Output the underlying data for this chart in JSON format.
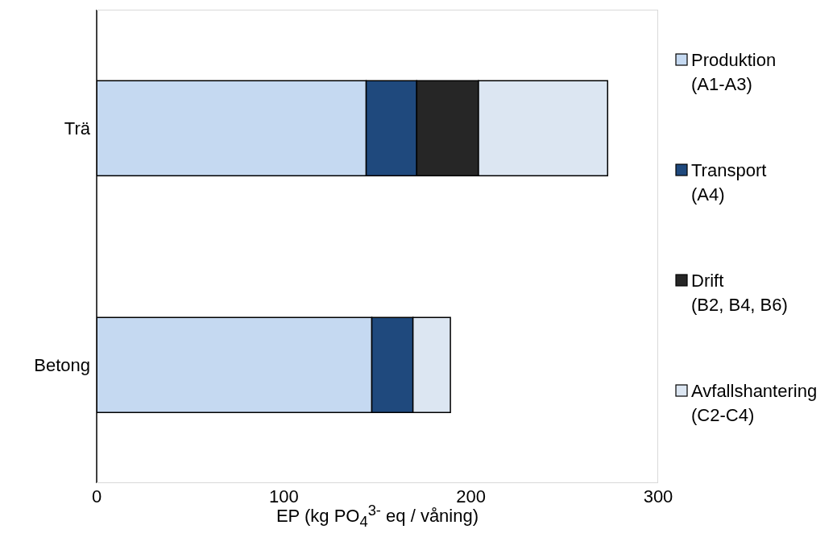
{
  "chart_data": {
    "type": "bar",
    "orientation": "horizontal",
    "stacked": true,
    "categories": [
      "Trä",
      "Betong"
    ],
    "series": [
      {
        "name": "Produktion (A1-A3)",
        "color": "#c5d9f1",
        "values": [
          144,
          147
        ]
      },
      {
        "name": "Transport (A4)",
        "color": "#1f497d",
        "values": [
          27,
          22
        ]
      },
      {
        "name": "Drift (B2, B4, B6)",
        "color": "#262626",
        "values": [
          33,
          0
        ]
      },
      {
        "name": "Avfallshantering (C2-C4)",
        "color": "#dce6f2",
        "values": [
          69,
          20
        ]
      }
    ],
    "xlabel": "EP (kg PO$_{4}$$^{3-}$ eq / våning)",
    "xlim": [
      0,
      300
    ],
    "xticks": [
      0,
      100,
      200,
      300
    ],
    "legend": "right"
  }
}
